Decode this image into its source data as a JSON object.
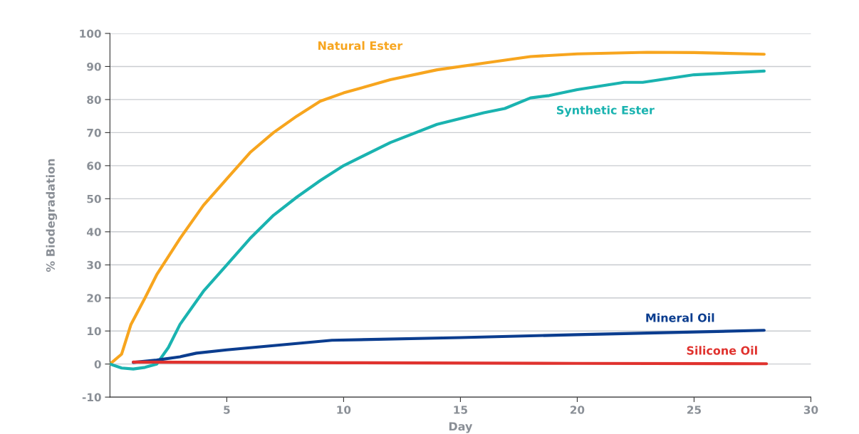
{
  "chart_data": {
    "type": "line",
    "xlabel": "Day",
    "ylabel": "% Biodegradation",
    "xlim": [
      0,
      30
    ],
    "xticks": [
      5,
      10,
      15,
      20,
      25,
      30
    ],
    "ylim": [
      -10,
      100
    ],
    "yticks": [
      -10,
      0,
      10,
      20,
      30,
      40,
      50,
      60,
      70,
      80,
      90,
      100
    ],
    "grid": "y",
    "legend": false,
    "marker": "none",
    "line_style": "solid",
    "series": [
      {
        "name": "Natural Ester",
        "color": "#f7a51e",
        "x": [
          0,
          0.5,
          0.9,
          1.5,
          2,
          3,
          4,
          5,
          6,
          7,
          8,
          9,
          10,
          12,
          14,
          16,
          18,
          20,
          23,
          25,
          28
        ],
        "values": [
          0,
          3,
          12,
          20,
          27,
          38,
          48,
          56,
          64,
          70,
          75,
          79.5,
          82,
          86,
          89,
          91,
          93,
          93.8,
          94.3,
          94.2,
          93.7
        ]
      },
      {
        "name": "Synthetic Ester",
        "color": "#1ab3b0",
        "x": [
          0,
          0.5,
          1,
          1.5,
          2,
          2.5,
          3,
          4,
          5,
          6,
          7,
          8,
          9,
          10,
          12,
          14,
          16,
          16.9,
          18,
          18.8,
          20,
          22,
          22.8,
          25,
          28
        ],
        "values": [
          0,
          -1.2,
          -1.5,
          -1,
          0,
          5,
          12,
          22,
          30,
          38,
          45,
          50.5,
          55.5,
          60,
          67,
          72.5,
          76,
          77.3,
          80.5,
          81.2,
          83,
          85.2,
          85.2,
          87.5,
          88.6
        ]
      },
      {
        "name": "Mineral Oil",
        "color": "#0b3d8f",
        "x": [
          1,
          2,
          3,
          3.7,
          5,
          9.5,
          15,
          20,
          25,
          28
        ],
        "values": [
          0.5,
          1.2,
          2.2,
          3.3,
          4.3,
          7.2,
          8,
          8.9,
          9.7,
          10.2
        ]
      },
      {
        "name": "Silicone Oil",
        "color": "#e0322e",
        "x": [
          1,
          10,
          20,
          28.1
        ],
        "values": [
          0.6,
          0.4,
          0.2,
          0.1
        ]
      }
    ]
  }
}
